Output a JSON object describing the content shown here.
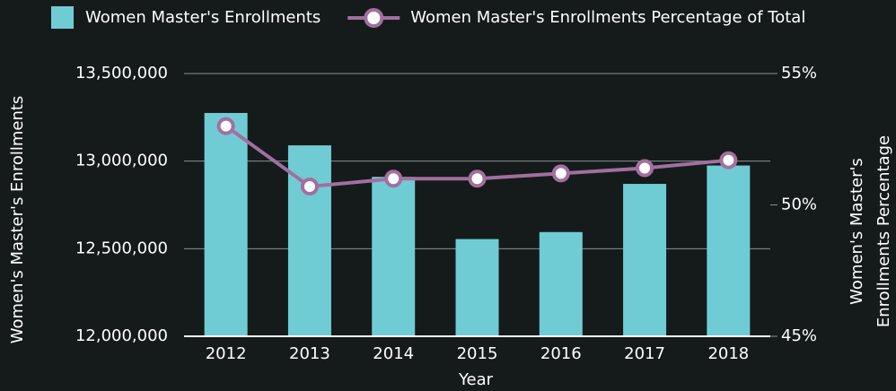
{
  "chart_data": {
    "type": "bar_line",
    "categories": [
      "2012",
      "2013",
      "2014",
      "2015",
      "2016",
      "2017",
      "2018"
    ],
    "series": [
      {
        "name": "Women Master's Enrollments",
        "color": "#70ccd4",
        "type": "bar",
        "values": [
          13275000,
          13090000,
          12910000,
          12555000,
          12595000,
          12870000,
          12975000
        ]
      },
      {
        "name": "Women Master's Enrollments Percentage of Total",
        "color": "#a26fa0",
        "type": "line",
        "axis": "y2",
        "values": [
          53.0,
          50.7,
          51.0,
          51.0,
          51.2,
          51.4,
          51.7
        ]
      }
    ],
    "xlabel": "Year",
    "ylabel": "Women's Master's Enrollments",
    "y2label": [
      "Women's Master's",
      "Enrollments Percentage"
    ],
    "ylim": [
      12000000,
      13500000
    ],
    "yticks": [
      {
        "value": 12000000,
        "label": "12,000,000"
      },
      {
        "value": 12500000,
        "label": "12,500,000"
      },
      {
        "value": 13000000,
        "label": "13,000,000"
      },
      {
        "value": 13500000,
        "label": "13,500,000"
      }
    ],
    "y2lim": [
      45,
      55
    ],
    "y2ticks": [
      {
        "value": 45,
        "label": "45%"
      },
      {
        "value": 50,
        "label": "50%"
      },
      {
        "value": 55,
        "label": "55%"
      }
    ],
    "grid": true,
    "legend": "top"
  }
}
